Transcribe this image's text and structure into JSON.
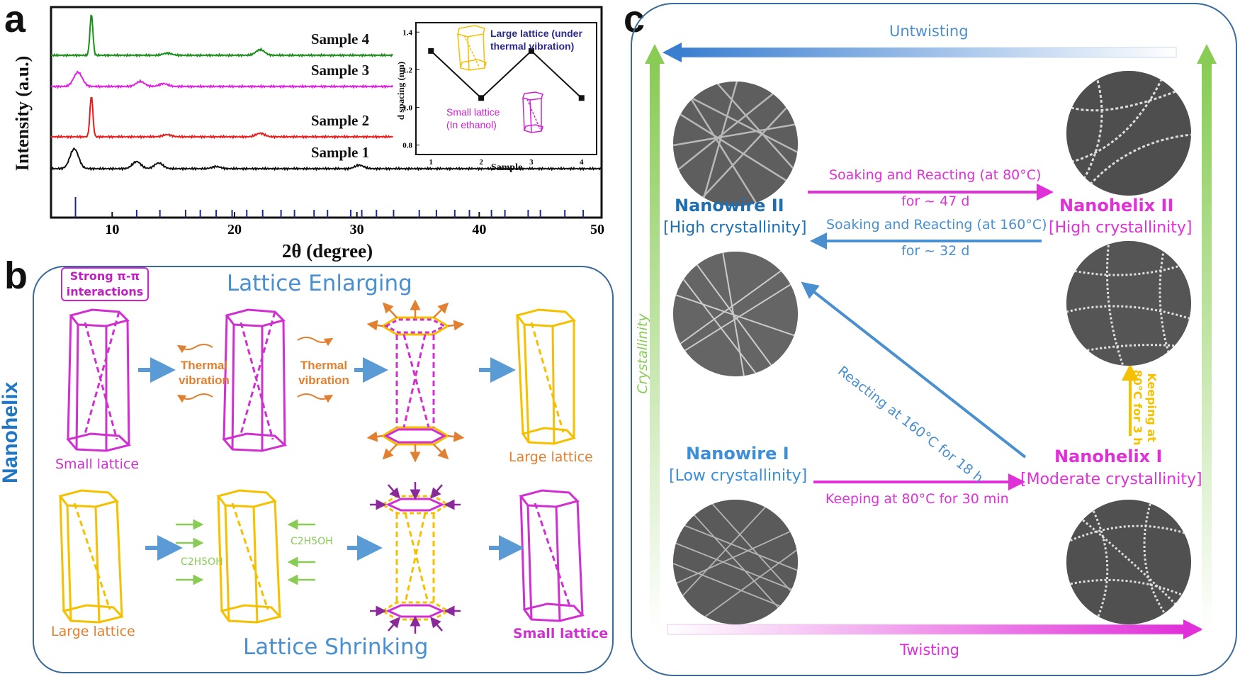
{
  "panel_letters": {
    "a": "a",
    "b": "b",
    "c": "c"
  },
  "colors": {
    "sample4": "#1a8f1a",
    "sample3": "#e020e0",
    "sample2": "#e81c1c",
    "sample1": "#111111",
    "ref_ticks": "#1c2a8a",
    "magenta": "#e030d8",
    "yellow": "#f5c000",
    "blue_text": "#4a8fd0",
    "orange": "#e08030",
    "green": "#88cc55",
    "dark_blue": "#1f5a9a"
  },
  "chart_data": [
    {
      "type": "line",
      "xlabel": "2θ (degree)",
      "ylabel": "Intensity (a.u.)",
      "xlim": [
        5,
        50
      ],
      "xticks": [
        10,
        20,
        30,
        40,
        50
      ],
      "series": [
        {
          "name": "Sample 4",
          "peaks": [
            [
              8.3,
              58
            ],
            [
              14.5,
              3
            ],
            [
              22.1,
              8
            ]
          ]
        },
        {
          "name": "Sample 3",
          "peaks": [
            [
              7.2,
              20
            ],
            [
              12.3,
              7
            ],
            [
              14.2,
              4
            ]
          ]
        },
        {
          "name": "Sample 2",
          "peaks": [
            [
              8.3,
              58
            ],
            [
              14.5,
              3
            ],
            [
              22.1,
              5
            ]
          ]
        },
        {
          "name": "Sample 1",
          "peaks": [
            [
              6.9,
              28
            ],
            [
              12.0,
              10
            ],
            [
              13.8,
              8
            ],
            [
              18.5,
              3
            ],
            [
              30.2,
              5
            ]
          ]
        }
      ],
      "reference_ticks": [
        7.0,
        12.0,
        13.9,
        16.0,
        17.2,
        18.5,
        19.8,
        21.0,
        22.3,
        23.8,
        24.9,
        26.5,
        27.6,
        29.5,
        30.4,
        31.6,
        33.0,
        35.1,
        36.5,
        38.0,
        39.2,
        41.0,
        42.1,
        44.0,
        45.0,
        47.0,
        48.5
      ]
    },
    {
      "type": "line",
      "title": "",
      "xlabel": "Sample",
      "ylabel": "d spacing (nm)",
      "x": [
        1,
        2,
        3,
        4
      ],
      "y": [
        1.3,
        1.05,
        1.3,
        1.05
      ],
      "xlim": [
        0.7,
        4.3
      ],
      "ylim": [
        0.75,
        1.45
      ],
      "yticks": [
        0.8,
        1.0,
        1.2,
        1.4
      ],
      "xticks": [
        1,
        2,
        3,
        4
      ]
    }
  ],
  "inset_labels": {
    "large": "Large lattice (under thermal vibration)",
    "small_line1": "Small lattice",
    "small_line2": "(In ethanol)"
  },
  "panel_b": {
    "side_label": "Nanohelix",
    "strong_line1": "Strong π-π",
    "strong_line2": "interactions",
    "enlarging": "Lattice Enlarging",
    "shrinking": "Lattice Shrinking",
    "thermal1": "Thermal vibration",
    "thermal2": "Thermal vibration",
    "small_lattice_top": "Small lattice",
    "large_lattice_top": "Large lattice",
    "large_lattice_bottom": "Large lattice",
    "small_lattice_bottom": "Small lattice",
    "ethanol": "C2H5OH"
  },
  "panel_c": {
    "untwisting": "Untwisting",
    "twisting": "Twisting",
    "crystallinity": "Crystallinity",
    "nanowire2": "Nanowire II",
    "nanowire2_sub": "[High crystallinity]",
    "nanohelix2": "Nanohelix II",
    "nanohelix2_sub": "[High crystallinity]",
    "nanowire1": "Nanowire I",
    "nanowire1_sub": "[Low crystallinity]",
    "nanohelix1": "Nanohelix I",
    "nanohelix1_sub": "[Moderate crystallinity]",
    "soak80": "Soaking and Reacting (at 80°C)",
    "soak80_time": "for ~ 47 d",
    "soak160": "Soaking and Reacting (at 160°C)",
    "soak160_time": "for ~ 32 d",
    "react160": "Reacting at 160°C for 18 h",
    "keep30": "Keeping at 80°C for 30 min",
    "keep3h_line1": "Keeping at",
    "keep3h_line2": "80°C for 3 h"
  }
}
